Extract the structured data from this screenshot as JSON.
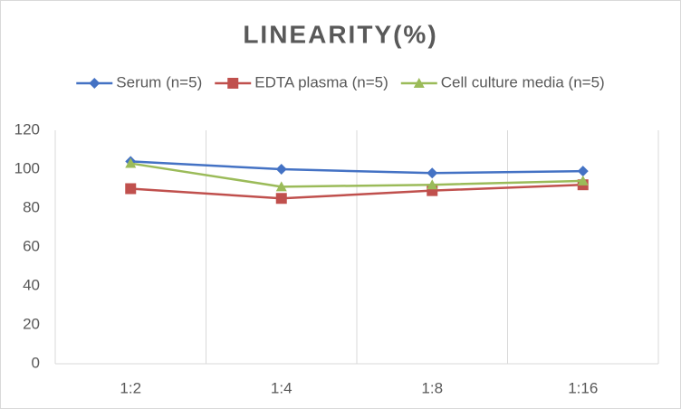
{
  "chart_data": {
    "type": "line",
    "title": "LINEARITY(%)",
    "categories": [
      "1:2",
      "1:4",
      "1:8",
      "1:16"
    ],
    "series": [
      {
        "name": "Serum (n=5)",
        "color": "#4472c4",
        "marker": "diamond",
        "values": [
          104,
          100,
          98,
          99
        ]
      },
      {
        "name": "EDTA plasma (n=5)",
        "color": "#c0504d",
        "marker": "square",
        "values": [
          90,
          85,
          89,
          92
        ]
      },
      {
        "name": "Cell culture media (n=5)",
        "color": "#9bbb59",
        "marker": "triangle",
        "values": [
          103,
          91,
          92,
          94
        ]
      }
    ],
    "ylim": [
      0,
      120
    ],
    "yticks": [
      0,
      20,
      40,
      60,
      80,
      100,
      120
    ],
    "grid": "vertical",
    "legend": "top"
  }
}
